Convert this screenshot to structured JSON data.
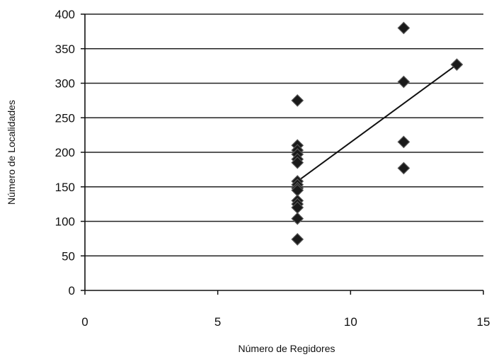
{
  "chart_data": {
    "type": "scatter",
    "title": "",
    "xlabel": "Número de Regidores",
    "ylabel": "Número de Localidades",
    "xlim": [
      0,
      15
    ],
    "ylim": [
      0,
      400
    ],
    "xticks": [
      0,
      5,
      10,
      15
    ],
    "yticks": [
      0,
      50,
      100,
      150,
      200,
      250,
      300,
      350,
      400
    ],
    "grid": "horizontal",
    "legend": "none",
    "marker_color": "#1a1a1a",
    "line_color": "#111111",
    "series": [
      {
        "marker": "diamond",
        "points": [
          {
            "x": 8,
            "y": 275
          },
          {
            "x": 8,
            "y": 210
          },
          {
            "x": 8,
            "y": 203
          },
          {
            "x": 8,
            "y": 197
          },
          {
            "x": 8,
            "y": 190
          },
          {
            "x": 8,
            "y": 185
          },
          {
            "x": 8,
            "y": 158
          },
          {
            "x": 8,
            "y": 153
          },
          {
            "x": 8,
            "y": 148
          },
          {
            "x": 8,
            "y": 145
          },
          {
            "x": 8,
            "y": 130
          },
          {
            "x": 8,
            "y": 125
          },
          {
            "x": 8,
            "y": 120
          },
          {
            "x": 8,
            "y": 104
          },
          {
            "x": 8,
            "y": 74
          },
          {
            "x": 12,
            "y": 380
          },
          {
            "x": 12,
            "y": 302
          },
          {
            "x": 12,
            "y": 215
          },
          {
            "x": 12,
            "y": 177
          },
          {
            "x": 14,
            "y": 327
          }
        ]
      }
    ],
    "trendline": {
      "type": "linear",
      "x_start": 8,
      "y_start": 158,
      "x_end": 14,
      "y_end": 327
    }
  }
}
